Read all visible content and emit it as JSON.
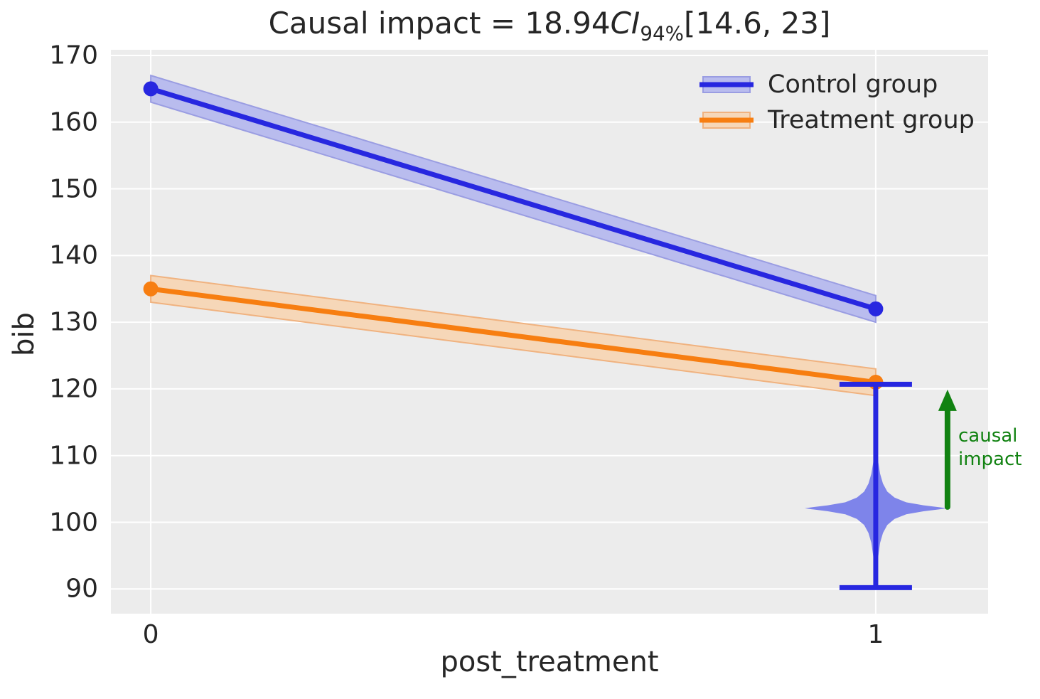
{
  "chart_data": {
    "type": "line",
    "title": {
      "prefix": "Causal impact = 18.94",
      "ci": "CI",
      "ci_sub": "94%",
      "interval": "[14.6, 23]"
    },
    "xlabel": "post_treatment",
    "ylabel": "bib",
    "x": [
      0,
      1
    ],
    "xlim": [
      -0.055,
      1.155
    ],
    "ylim": [
      86.3,
      170.85
    ],
    "xticks": [
      0,
      1
    ],
    "xtick_labels": [
      "0",
      "1"
    ],
    "yticks": [
      90,
      100,
      110,
      120,
      130,
      140,
      150,
      160,
      170
    ],
    "ytick_labels": [
      "90",
      "100",
      "110",
      "120",
      "130",
      "140",
      "150",
      "160",
      "170"
    ],
    "grid": true,
    "legend_position": "upper right",
    "series": [
      {
        "name": "Control group",
        "y": [
          165,
          132
        ],
        "band_lower": [
          163,
          130
        ],
        "band_upper": [
          167,
          134
        ],
        "color": "#2727e0",
        "band_color": "#b9bcee",
        "band_edge_color": "#9a9de2"
      },
      {
        "name": "Treatment group",
        "y": [
          135,
          121
        ],
        "band_lower": [
          133,
          119
        ],
        "band_upper": [
          137,
          123
        ],
        "color": "#f77e11",
        "band_color": "#f6d7b8",
        "band_edge_color": "#f0b27f"
      }
    ],
    "violin": {
      "x": 1,
      "mode": 102.05,
      "whisker_low": 90.2,
      "whisker_high": 120.7,
      "cap_halfwidth": 0.05,
      "fill_color": "#7e84ea",
      "line_color": "#2727e0",
      "profile": [
        [
          113.5,
          0.0012
        ],
        [
          111.0,
          0.002
        ],
        [
          109.0,
          0.0035
        ],
        [
          107.3,
          0.006
        ],
        [
          105.8,
          0.01
        ],
        [
          104.6,
          0.016
        ],
        [
          103.7,
          0.026
        ],
        [
          103.0,
          0.042
        ],
        [
          102.55,
          0.066
        ],
        [
          102.25,
          0.088
        ],
        [
          102.1,
          0.098
        ],
        [
          101.95,
          0.088
        ],
        [
          101.65,
          0.066
        ],
        [
          101.2,
          0.042
        ],
        [
          100.5,
          0.026
        ],
        [
          99.6,
          0.016
        ],
        [
          98.4,
          0.01
        ],
        [
          96.9,
          0.006
        ],
        [
          94.9,
          0.0035
        ],
        [
          92.6,
          0.002
        ],
        [
          90.5,
          0.0012
        ]
      ]
    },
    "arrow": {
      "x": 1.099,
      "from": 102.3,
      "to": 119.9,
      "color": "#118211",
      "label_line1": "causal",
      "label_line2": "impact"
    },
    "colors": {
      "background": "#ececec",
      "grid": "#ffffff",
      "text": "#262626"
    }
  }
}
